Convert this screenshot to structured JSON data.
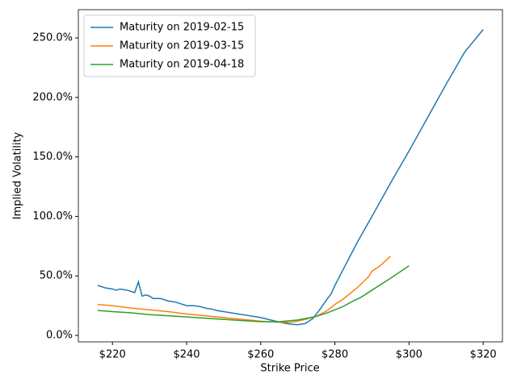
{
  "chart_data": {
    "type": "line",
    "x_label": "Strike Price",
    "y_label": "Implied Volatility",
    "xlim": [
      210.8,
      325.2
    ],
    "ylim": [
      -5.4,
      273.7
    ],
    "xticks": [
      {
        "value": 220,
        "label": "$220"
      },
      {
        "value": 240,
        "label": "$240"
      },
      {
        "value": 260,
        "label": "$260"
      },
      {
        "value": 280,
        "label": "$280"
      },
      {
        "value": 300,
        "label": "$300"
      },
      {
        "value": 320,
        "label": "$320"
      }
    ],
    "yticks": [
      {
        "value": 0,
        "label": "0.0%"
      },
      {
        "value": 50,
        "label": "50.0%"
      },
      {
        "value": 100,
        "label": "100.0%"
      },
      {
        "value": 150,
        "label": "150.0%"
      },
      {
        "value": 200,
        "label": "200.0%"
      },
      {
        "value": 250,
        "label": "250.0%"
      }
    ],
    "legend": "upper left",
    "series": [
      {
        "name": "Maturity on 2019-02-15",
        "color": "#1f77b4",
        "x": [
          216,
          218,
          220,
          221,
          222,
          224,
          226,
          227,
          228,
          229,
          230,
          231,
          233,
          235,
          237,
          238,
          240,
          242,
          244,
          245,
          247,
          248,
          250,
          252,
          254,
          256,
          258,
          260,
          262,
          264,
          266,
          268,
          270,
          272,
          274,
          276,
          278,
          279,
          280,
          282,
          283,
          284,
          286,
          288,
          290,
          295,
          300,
          305,
          310,
          315,
          320
        ],
        "values": [
          42,
          40,
          39,
          38,
          39,
          38,
          36,
          45,
          33,
          34,
          33,
          31,
          31,
          29,
          28,
          27,
          25,
          25,
          24,
          23,
          22,
          21,
          20,
          19,
          18,
          17,
          16,
          15,
          13.5,
          12,
          10.5,
          9.5,
          9,
          10,
          14,
          22,
          31,
          35,
          42,
          54,
          60,
          66,
          78,
          89,
          100,
          128,
          155,
          183,
          211,
          238,
          257
        ]
      },
      {
        "name": "Maturity on 2019-03-15",
        "color": "#ff7f0e",
        "x": [
          216,
          220,
          225,
          230,
          235,
          240,
          245,
          250,
          255,
          260,
          265,
          268,
          270,
          272,
          275,
          278,
          280,
          282,
          284,
          286,
          288,
          289,
          290,
          292,
          295
        ],
        "values": [
          26,
          25,
          23,
          21.5,
          20,
          18,
          16.5,
          15,
          13.5,
          12,
          11,
          11,
          12,
          13.5,
          16,
          21,
          26,
          30,
          35,
          40,
          46,
          49,
          54,
          58,
          66.5
        ]
      },
      {
        "name": "Maturity on 2019-04-18",
        "color": "#2ca02c",
        "x": [
          216,
          220,
          225,
          230,
          235,
          240,
          245,
          250,
          255,
          260,
          265,
          270,
          275,
          278,
          280,
          282,
          285,
          287,
          290,
          295,
          300
        ],
        "values": [
          21,
          20,
          19,
          17.5,
          16.5,
          15.5,
          14.5,
          13.5,
          12.5,
          11.5,
          11.5,
          13,
          16,
          19,
          21.5,
          24,
          29,
          32,
          38,
          48,
          58.5
        ]
      }
    ]
  }
}
